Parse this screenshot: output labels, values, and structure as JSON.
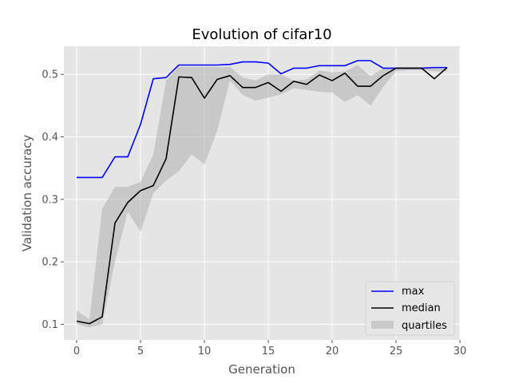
{
  "chart_data": {
    "type": "line",
    "title": "Evolution of cifar10",
    "xlabel": "Generation",
    "ylabel": "Validation accuracy",
    "xlim": [
      -1,
      30
    ],
    "ylim": [
      0.075,
      0.545
    ],
    "xticks": [
      0,
      5,
      10,
      15,
      20,
      25,
      30
    ],
    "yticks": [
      0.1,
      0.2,
      0.3,
      0.4,
      0.5
    ],
    "grid": true,
    "legend_position": "bottom-right",
    "x": [
      0,
      1,
      2,
      3,
      4,
      5,
      6,
      7,
      8,
      9,
      10,
      11,
      12,
      13,
      14,
      15,
      16,
      17,
      18,
      19,
      20,
      21,
      22,
      23,
      24,
      25,
      26,
      27,
      28,
      29
    ],
    "series": [
      {
        "name": "max",
        "color": "#0000ff",
        "values": [
          0.335,
          0.335,
          0.335,
          0.368,
          0.368,
          0.42,
          0.493,
          0.495,
          0.515,
          0.515,
          0.515,
          0.515,
          0.516,
          0.52,
          0.52,
          0.518,
          0.501,
          0.51,
          0.51,
          0.514,
          0.514,
          0.514,
          0.522,
          0.522,
          0.51,
          0.51,
          0.51,
          0.51,
          0.511,
          0.511
        ]
      },
      {
        "name": "median",
        "color": "#000000",
        "values": [
          0.105,
          0.101,
          0.112,
          0.262,
          0.295,
          0.314,
          0.322,
          0.365,
          0.496,
          0.495,
          0.462,
          0.492,
          0.498,
          0.479,
          0.479,
          0.487,
          0.473,
          0.489,
          0.484,
          0.499,
          0.49,
          0.502,
          0.481,
          0.481,
          0.498,
          0.51,
          0.51,
          0.51,
          0.493,
          0.511
        ]
      }
    ],
    "band": {
      "name": "quartiles",
      "color": "#b0b0b0",
      "lower": [
        0.1,
        0.095,
        0.1,
        0.2,
        0.28,
        0.248,
        0.31,
        0.33,
        0.345,
        0.372,
        0.356,
        0.41,
        0.49,
        0.467,
        0.458,
        0.463,
        0.468,
        0.478,
        0.475,
        0.472,
        0.471,
        0.456,
        0.467,
        0.45,
        0.48,
        0.505,
        0.507,
        0.507,
        0.505,
        0.505
      ],
      "upper": [
        0.122,
        0.108,
        0.285,
        0.32,
        0.32,
        0.328,
        0.372,
        0.49,
        0.512,
        0.512,
        0.512,
        0.512,
        0.512,
        0.495,
        0.49,
        0.5,
        0.5,
        0.49,
        0.492,
        0.506,
        0.503,
        0.505,
        0.515,
        0.497,
        0.51,
        0.51,
        0.51,
        0.51,
        0.51,
        0.511
      ]
    }
  }
}
